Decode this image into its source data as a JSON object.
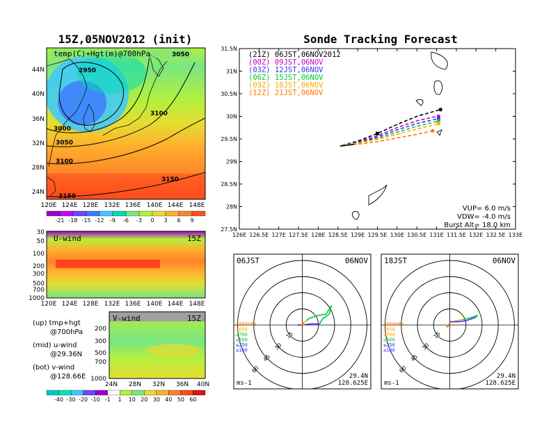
{
  "colors": {
    "temp_scale": [
      "#a000c8",
      "#c800ff",
      "#6e46ff",
      "#3c78ff",
      "#3cc8ff",
      "#00dcb4",
      "#78e682",
      "#b4f03c",
      "#e6dc32",
      "#ffaf2d",
      "#ff8228",
      "#ff4b1e",
      "#dc1414"
    ],
    "wind_scale": [
      "#00c8c8",
      "#00e6b4",
      "#3cc8ff",
      "#6e46ff",
      "#a000c8",
      "#ffffff",
      "#b4f03c",
      "#78e682",
      "#e6dc32",
      "#ffaf2d",
      "#ff8228",
      "#ff4b1e",
      "#dc1414"
    ],
    "track_21z": "#000000",
    "track_00z": "#c800c8",
    "track_03z": "#3232ff",
    "track_06z": "#00c832",
    "track_09z": "#ffaa00",
    "track_12z": "#ff7800"
  },
  "left": {
    "title": "15Z,05NOV2012 (init)",
    "map": {
      "label": "temp(C)+Hgt(m)@700hPa",
      "lat_ticks": [
        "44N",
        "40N",
        "36N",
        "32N",
        "28N",
        "24N"
      ],
      "lon_ticks": [
        "120E",
        "124E",
        "128E",
        "132E",
        "136E",
        "140E",
        "144E",
        "148E"
      ],
      "contour_labels": [
        "2950",
        "3000",
        "3050",
        "3100",
        "3150",
        "3150",
        "3100",
        "3050"
      ]
    },
    "temp_bar": {
      "labels": [
        "-21",
        "-18",
        "-15",
        "-12",
        "-9",
        "-6",
        "-3",
        "0",
        "3",
        "6",
        "9"
      ]
    },
    "uwind": {
      "label": "U-wind",
      "time": "15Z",
      "y_ticks": [
        "30",
        "50",
        "100",
        "200",
        "300",
        "500",
        "700",
        "1000"
      ],
      "x_ticks": [
        "120E",
        "124E",
        "128E",
        "132E",
        "136E",
        "140E",
        "144E",
        "148E"
      ]
    },
    "vwind": {
      "label": "V-wind",
      "time": "15Z",
      "y_ticks": [
        "200",
        "300",
        "500",
        "700",
        "1000"
      ],
      "x_ticks": [
        "24N",
        "28N",
        "32N",
        "36N",
        "40N"
      ]
    },
    "legend": {
      "up1": "(up) tmp+hgt",
      "up2": "@700hPa",
      "mid1": "(mid) u-wind",
      "mid2": "@29.36N",
      "bot1": "(bot) v-wind",
      "bot2": "@128.66E"
    },
    "wind_bar": {
      "labels": [
        "-40",
        "-30",
        "-20",
        "-10",
        "-1",
        "1",
        "10",
        "20",
        "30",
        "40",
        "50",
        "60"
      ]
    }
  },
  "chart_data": [
    {
      "type": "line",
      "title": "Sonde Tracking Forecast",
      "xlabel": "",
      "ylabel": "",
      "x_ticks": [
        "126E",
        "126.5E",
        "127E",
        "127.5E",
        "128E",
        "128.5E",
        "129E",
        "129.5E",
        "130E",
        "130.5E",
        "131E",
        "131.5E",
        "132E",
        "132.5E",
        "133E"
      ],
      "y_ticks": [
        "31.5N",
        "31N",
        "30.5N",
        "30N",
        "29.5N",
        "29N",
        "28.5N",
        "28N",
        "27.5N"
      ],
      "xlim": [
        126,
        133
      ],
      "ylim": [
        27.5,
        31.5
      ],
      "legend_placement": "top-left",
      "series": [
        {
          "name": "(21Z)  06JST,06NOV2012",
          "color_key": "track_21z",
          "dash": true,
          "x": [
            128.6,
            129.0,
            129.5,
            130.0,
            130.5,
            130.9,
            131.1
          ],
          "y": [
            29.36,
            29.45,
            29.62,
            29.82,
            30.0,
            30.1,
            30.15
          ]
        },
        {
          "name": "(00Z)  09JST,06NOV",
          "color_key": "track_00z",
          "dash": true,
          "x": [
            128.6,
            129.0,
            129.5,
            130.0,
            130.5,
            130.9,
            131.05
          ],
          "y": [
            29.36,
            29.43,
            29.57,
            29.75,
            29.9,
            29.98,
            30.0
          ]
        },
        {
          "name": "(03Z)  12JST,06NOV",
          "color_key": "track_03z",
          "dash": true,
          "x": [
            128.6,
            129.0,
            129.5,
            130.0,
            130.5,
            130.9,
            131.05
          ],
          "y": [
            29.36,
            29.42,
            29.54,
            29.7,
            29.84,
            29.92,
            29.95
          ]
        },
        {
          "name": "(06Z)  15JST,06NOV",
          "color_key": "track_06z",
          "dash": true,
          "x": [
            128.6,
            129.0,
            129.5,
            130.0,
            130.5,
            130.9,
            131.05
          ],
          "y": [
            29.36,
            29.41,
            29.51,
            29.65,
            29.78,
            29.86,
            29.9
          ]
        },
        {
          "name": "(09Z)  18JST,06NOV",
          "color_key": "track_09z",
          "dash": true,
          "x": [
            128.6,
            129.0,
            129.5,
            130.0,
            130.5,
            130.9,
            131.05
          ],
          "y": [
            29.36,
            29.4,
            29.49,
            29.6,
            29.72,
            29.8,
            29.84
          ]
        },
        {
          "name": "(12Z)  21JST,06NOV",
          "color_key": "track_12z",
          "dash": true,
          "x": [
            128.6,
            129.0,
            129.5,
            130.0,
            130.5,
            130.9
          ],
          "y": [
            29.36,
            29.38,
            29.44,
            29.52,
            29.6,
            29.68
          ]
        }
      ],
      "params": {
        "vup": "VUP= 6.0 m/s",
        "vdw": "VDW= -4.0 m/s",
        "burst": "Burst Alt= 18.0 km"
      }
    },
    {
      "type": "line",
      "title": "06JST",
      "date": "06NOV",
      "hodograph_labels": [
        "15",
        "30",
        "45",
        "60"
      ],
      "unit": "ms-1",
      "lat": "29.4N",
      "lon": "128.625E",
      "levels": [
        {
          "name": "≥850hPa",
          "color_key": "track_12z",
          "x": [
            0,
            1
          ],
          "y": [
            0,
            2
          ]
        },
        {
          "name": "≤850",
          "color_key": "track_09z",
          "x": [
            1,
            4
          ],
          "y": [
            2,
            4
          ]
        },
        {
          "name": "≤700",
          "color_key": "track_06z",
          "x": [
            4,
            6
          ],
          "y": [
            4,
            6
          ]
        },
        {
          "name": "≤500",
          "color_key": "track_06z",
          "x": [
            6,
            15,
            22,
            27,
            25,
            19,
            16
          ],
          "y": [
            6,
            9,
            10,
            18,
            10,
            6,
            1
          ]
        },
        {
          "name": "≤250",
          "color_key": "track_03z",
          "x": [
            16,
            8,
            0,
            -4
          ],
          "y": [
            1,
            1,
            0,
            0
          ]
        },
        {
          "name": "≤100",
          "color_key": "track_03z",
          "x": [
            -4,
            0
          ],
          "y": [
            0,
            0
          ]
        }
      ]
    },
    {
      "type": "line",
      "title": "18JST",
      "date": "06NOV",
      "hodograph_labels": [
        "15",
        "30",
        "45",
        "60"
      ],
      "unit": "ms-1",
      "lat": "29.4N",
      "lon": "128.625E",
      "levels": [
        {
          "name": "≥850hPa",
          "color_key": "track_12z",
          "x": [
            -2,
            0
          ],
          "y": [
            -1,
            2
          ]
        },
        {
          "name": "≤850",
          "color_key": "track_09z",
          "x": [
            0,
            6
          ],
          "y": [
            2,
            4
          ]
        },
        {
          "name": "≤700",
          "color_key": "track_09z",
          "x": [
            6,
            12
          ],
          "y": [
            4,
            5
          ]
        },
        {
          "name": "≤500",
          "color_key": "track_06z",
          "x": [
            12,
            20,
            26,
            24
          ],
          "y": [
            5,
            7,
            9,
            7
          ]
        },
        {
          "name": "≤250",
          "color_key": "track_03z",
          "x": [
            24,
            15,
            8,
            2
          ],
          "y": [
            7,
            4,
            3,
            3
          ]
        },
        {
          "name": "≤100",
          "color_key": "track_03z",
          "x": [
            2,
            0
          ],
          "y": [
            3,
            3
          ]
        }
      ]
    }
  ]
}
